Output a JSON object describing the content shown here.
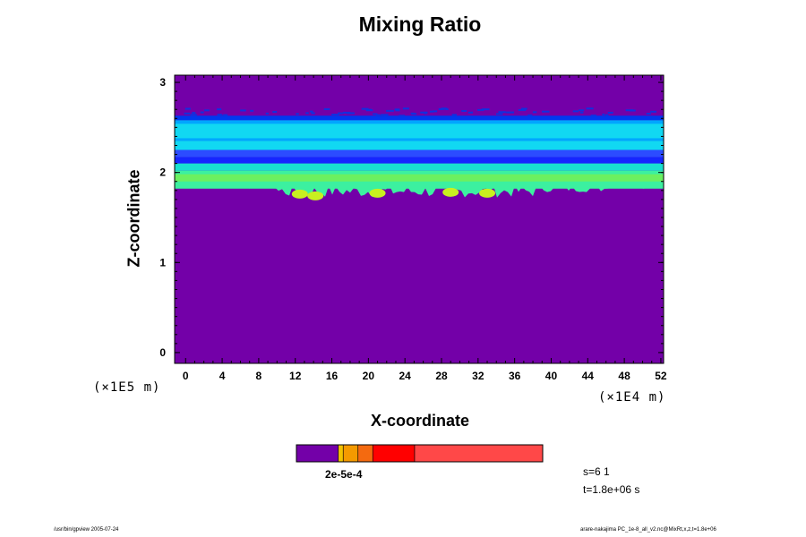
{
  "chart_data": {
    "type": "heatmap",
    "title": "Mixing Ratio",
    "xlabel": "X-coordinate",
    "ylabel": "Z-coordinate",
    "x_unit": "(×1E4 m)",
    "y_unit": "(×1E5 m)",
    "x_ticks": [
      0,
      4,
      8,
      12,
      16,
      20,
      24,
      28,
      32,
      36,
      40,
      44,
      48,
      52
    ],
    "y_ticks": [
      0,
      1,
      2,
      3
    ],
    "xlim": [
      -1.2,
      52.3
    ],
    "ylim": [
      -0.12,
      3.08
    ],
    "background_color": "#7300a8",
    "bands": [
      {
        "z": [
          2.58,
          2.63
        ],
        "color": "#0038f0"
      },
      {
        "z": [
          2.35,
          2.58
        ],
        "color": "#00a6ff"
      },
      {
        "z": [
          2.38,
          2.54
        ],
        "color": "#11d8f2"
      },
      {
        "z": [
          2.25,
          2.35
        ],
        "color": "#11d8f2"
      },
      {
        "z": [
          2.17,
          2.25
        ],
        "color": "#2c4cff"
      },
      {
        "z": [
          2.1,
          2.17
        ],
        "color": "#1626ff"
      },
      {
        "z": [
          2.02,
          2.1
        ],
        "color": "#18e0d0"
      },
      {
        "z": [
          1.82,
          2.02
        ],
        "color": "#3cf0a0"
      },
      {
        "z": [
          1.88,
          1.98
        ],
        "color": "#6cf060"
      }
    ],
    "colorbar": {
      "colors": [
        "#7300a8",
        "#f2c200",
        "#f49a00",
        "#f46a10",
        "#ff0000",
        "#ff4848",
        "#ffa0a0"
      ],
      "stops": [
        0.0,
        0.17,
        0.19,
        0.25,
        0.31,
        0.48,
        1.0
      ],
      "tick_label": "2e-5e-4"
    }
  },
  "annotations": {
    "s_label": "s=6 1",
    "t_label": "t=1.8e+06 s"
  },
  "footer": {
    "left": "/usr/bin/gpview 2005-07-24",
    "right": "arare-nakajima PC_1e-8_all_v2.nc@MixRt,x,z,t=1.8e+06"
  }
}
